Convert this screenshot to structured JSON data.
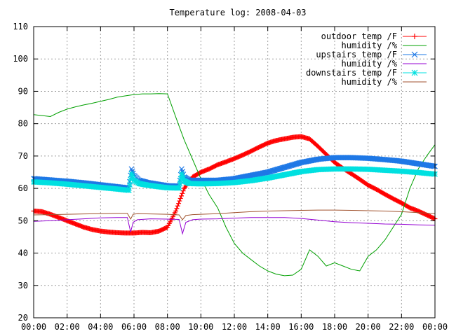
{
  "chart_data": {
    "type": "line",
    "title": "Temperature log: 2008-04-03",
    "xlabel": "",
    "ylabel": "",
    "x_unit": "hours of day",
    "xlim": [
      0,
      24
    ],
    "ylim": [
      20,
      110
    ],
    "x_ticks": [
      0,
      2,
      4,
      6,
      8,
      10,
      12,
      14,
      16,
      18,
      20,
      22,
      24
    ],
    "x_tick_labels": [
      "00:00",
      "02:00",
      "04:00",
      "06:00",
      "08:00",
      "10:00",
      "12:00",
      "14:00",
      "16:00",
      "18:00",
      "20:00",
      "22:00",
      "00:00"
    ],
    "y_ticks": [
      20,
      30,
      40,
      50,
      60,
      70,
      80,
      90,
      100,
      110
    ],
    "y_tick_labels": [
      "20",
      "30",
      "40",
      "50",
      "60",
      "70",
      "80",
      "90",
      "100",
      "110"
    ],
    "grid": true,
    "legend_position": "top-right",
    "series": [
      {
        "name": "outdoor temp /F",
        "color": "#ff0000",
        "marker": "plus",
        "x": [
          0,
          0.5,
          1,
          1.5,
          2,
          2.5,
          3,
          3.5,
          4,
          4.5,
          5,
          5.5,
          6,
          6.5,
          7,
          7.5,
          8,
          8.5,
          9,
          9.5,
          10,
          10.5,
          11,
          11.5,
          12,
          12.5,
          13,
          13.5,
          14,
          14.5,
          15,
          15.5,
          16,
          16.5,
          17,
          17.5,
          18,
          18.5,
          19,
          19.5,
          20,
          20.5,
          21,
          21.5,
          22,
          22.5,
          23,
          23.5,
          24
        ],
        "values": [
          53,
          52.8,
          52,
          51,
          50,
          49,
          48,
          47.3,
          46.8,
          46.5,
          46.3,
          46.2,
          46.2,
          46.4,
          46.3,
          46.8,
          48,
          53,
          60,
          63.5,
          65,
          66,
          67.3,
          68.2,
          69.2,
          70.3,
          71.5,
          72.8,
          74,
          74.8,
          75.3,
          75.8,
          76,
          75.3,
          73,
          70.5,
          68,
          66.2,
          64.5,
          62.8,
          61,
          59.7,
          58.2,
          56.8,
          55.5,
          54,
          53,
          51.8,
          50.6
        ]
      },
      {
        "name": "humidity /%",
        "color": "#00a000",
        "marker": "none",
        "x": [
          0,
          0.5,
          1,
          1.5,
          2,
          2.5,
          3,
          3.5,
          4,
          4.5,
          5,
          5.5,
          6,
          6.5,
          7,
          7.5,
          8,
          8.5,
          9,
          9.5,
          10,
          10.5,
          11,
          11.5,
          12,
          12.5,
          13,
          13.5,
          14,
          14.5,
          15,
          15.5,
          16,
          16.5,
          17,
          17.5,
          18,
          18.5,
          19,
          19.5,
          20,
          20.5,
          21,
          21.5,
          22,
          22.5,
          23,
          23.5,
          24
        ],
        "values": [
          82.8,
          82.5,
          82.2,
          83.5,
          84.5,
          85.2,
          85.8,
          86.3,
          86.9,
          87.5,
          88.2,
          88.6,
          89,
          89.2,
          89.2,
          89.3,
          89.2,
          82,
          75,
          69,
          63,
          58,
          54,
          48,
          43,
          40,
          38,
          36,
          34.5,
          33.5,
          33,
          33.2,
          35,
          41,
          39,
          36,
          37,
          36,
          35,
          34.5,
          39,
          41,
          44,
          48,
          52,
          60,
          66,
          70,
          73.5
        ]
      },
      {
        "name": "upstairs temp /F",
        "color": "#1e78e6",
        "marker": "x",
        "x": [
          0,
          1,
          2,
          3,
          4,
          5,
          5.7,
          5.85,
          6,
          6.3,
          6.8,
          7.5,
          8,
          8.7,
          8.85,
          9,
          9.3,
          10,
          11,
          12,
          13,
          14,
          15,
          16,
          17,
          18,
          19,
          20,
          21,
          22,
          23,
          24
        ],
        "values": [
          63,
          62.6,
          62.2,
          61.7,
          61.1,
          60.5,
          60.1,
          66,
          64,
          62.5,
          61.8,
          61.2,
          60.8,
          60.7,
          66,
          63.5,
          62.5,
          62.5,
          62.5,
          63,
          64,
          65,
          66.5,
          68,
          69,
          69.5,
          69.5,
          69.3,
          68.9,
          68.4,
          67.6,
          66.8
        ]
      },
      {
        "name": "humidity /%",
        "color": "#9400d3",
        "marker": "none",
        "x": [
          0,
          1,
          2,
          3,
          4,
          5,
          5.6,
          5.8,
          5.95,
          6.2,
          7,
          8,
          8.7,
          8.9,
          9.1,
          9.5,
          10,
          11,
          12,
          13,
          14,
          15,
          16,
          17,
          18,
          19,
          20,
          21,
          22,
          23,
          24
        ],
        "values": [
          49.8,
          50,
          50.3,
          50.6,
          50.9,
          51,
          51,
          46.5,
          49.5,
          50.3,
          50.6,
          50.5,
          50.4,
          46,
          49.5,
          50.3,
          50.5,
          50.6,
          50.8,
          51,
          51,
          51,
          50.7,
          50.2,
          49.7,
          49.4,
          49.2,
          49,
          48.9,
          48.7,
          48.6
        ]
      },
      {
        "name": "downstairs temp /F",
        "color": "#00e0e0",
        "marker": "star",
        "x": [
          0,
          1,
          2,
          3,
          4,
          5,
          5.7,
          5.85,
          6,
          6.3,
          6.8,
          7.5,
          8,
          8.7,
          8.85,
          9,
          9.3,
          10,
          11,
          12,
          13,
          14,
          15,
          16,
          17,
          18,
          19,
          20,
          21,
          22,
          23,
          24
        ],
        "values": [
          62,
          61.7,
          61.3,
          60.8,
          60.3,
          59.8,
          59.4,
          64.5,
          62.5,
          61.5,
          61,
          60.5,
          60.2,
          60.1,
          64.5,
          62.3,
          61.5,
          61.4,
          61.5,
          61.8,
          62.4,
          63.2,
          64.2,
          65.2,
          65.8,
          66,
          66,
          65.9,
          65.6,
          65.3,
          64.9,
          64.4
        ]
      },
      {
        "name": "humidity /%",
        "color": "#a0522d",
        "marker": "none",
        "x": [
          0,
          1,
          2,
          3,
          4,
          5,
          5.6,
          5.8,
          5.95,
          6.2,
          7,
          8,
          8.7,
          8.9,
          9.1,
          9.5,
          10,
          11,
          12,
          13,
          14,
          15,
          16,
          17,
          18,
          19,
          20,
          21,
          22,
          23,
          24
        ],
        "values": [
          51.8,
          51.9,
          52,
          52.1,
          52.2,
          52.3,
          52.3,
          50.5,
          52,
          52.2,
          52.1,
          52,
          51.8,
          50.3,
          51.6,
          51.9,
          52,
          52.2,
          52.5,
          52.8,
          53,
          53.1,
          53.2,
          53.3,
          53.3,
          53.2,
          53.1,
          53,
          52.8,
          52.5,
          52.2
        ]
      }
    ]
  }
}
